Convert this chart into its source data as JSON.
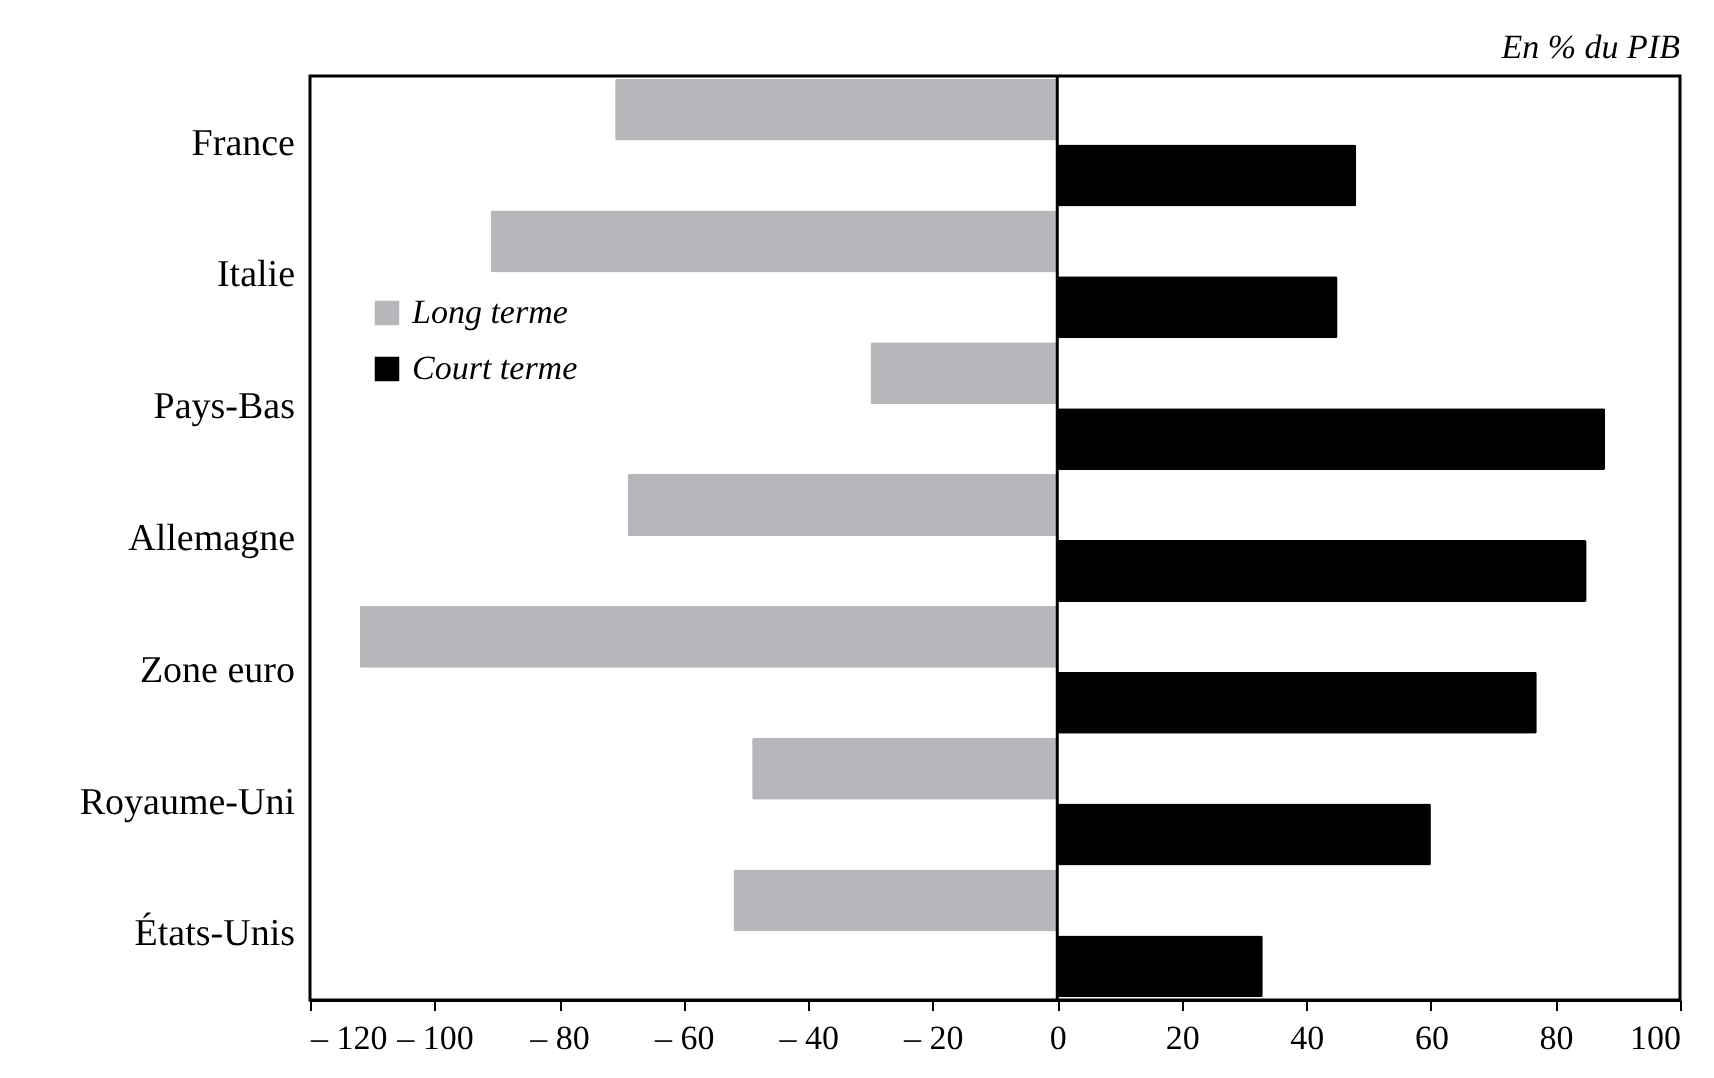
{
  "chart_data": {
    "type": "bar",
    "orientation": "horizontal",
    "categories": [
      "France",
      "Italie",
      "Pays-Bas",
      "Allemagne",
      "Zone euro",
      "Royaume-Uni",
      "États-Unis"
    ],
    "series": [
      {
        "name": "Long terme",
        "color": "#b6b7ba",
        "values": [
          -71,
          -91,
          -30,
          -69,
          -112,
          -49,
          -52
        ]
      },
      {
        "name": "Court terme",
        "color": "#000000",
        "values": [
          48,
          45,
          88,
          85,
          77,
          60,
          33
        ]
      }
    ],
    "xlim": [
      -120,
      100
    ],
    "xticks": [
      {
        "value": -120,
        "label": "– 120"
      },
      {
        "value": -100,
        "label": "– 100"
      },
      {
        "value": -80,
        "label": "– 80"
      },
      {
        "value": -60,
        "label": "– 60"
      },
      {
        "value": -40,
        "label": "– 40"
      },
      {
        "value": -20,
        "label": "– 20"
      },
      0,
      20,
      40,
      60,
      80,
      100
    ],
    "annotations": [
      "En % du PIB"
    ],
    "legend": "top left"
  }
}
